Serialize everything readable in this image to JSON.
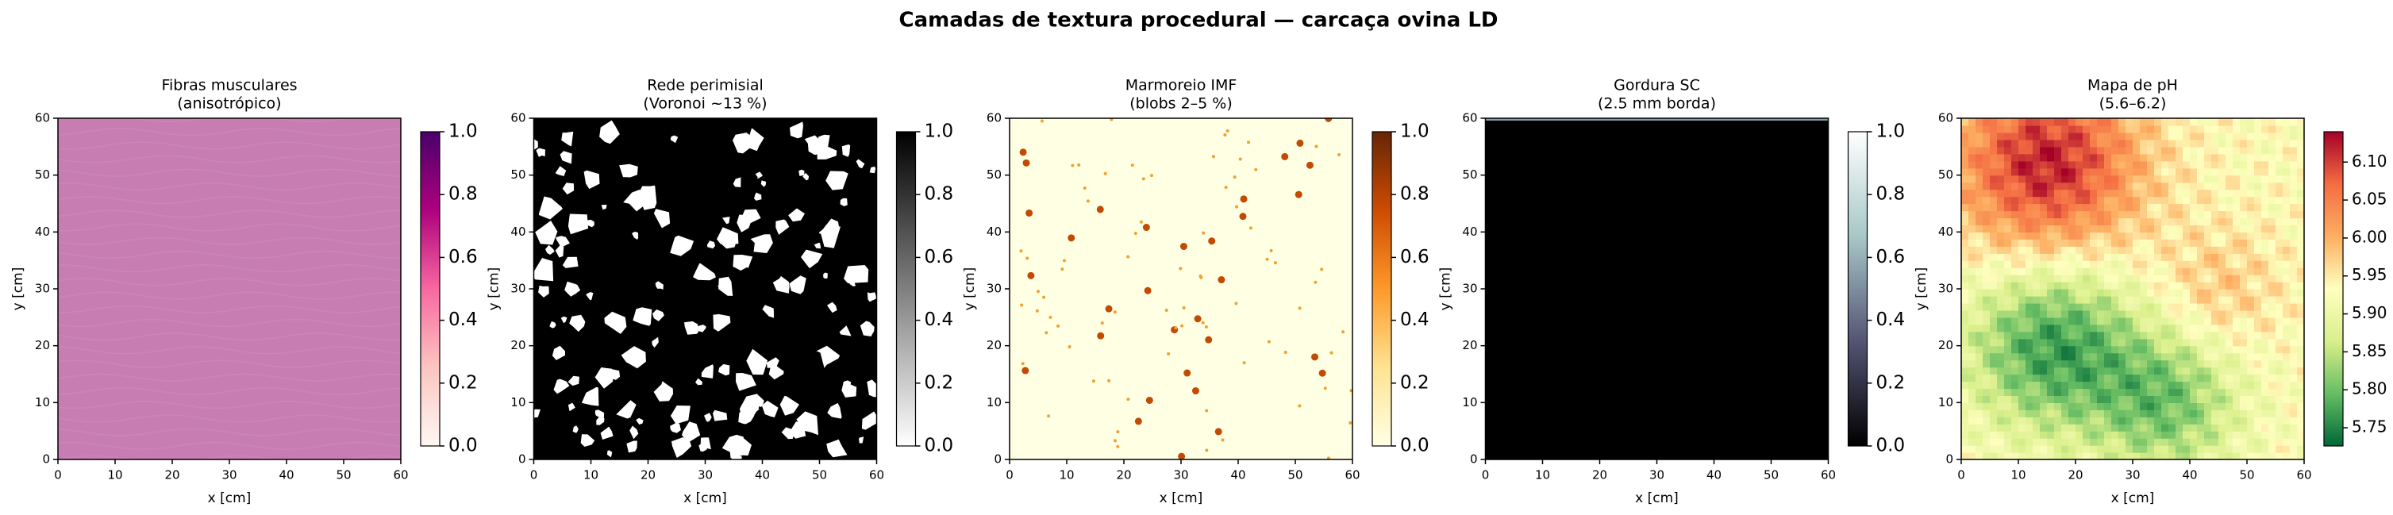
{
  "title": "Camadas de textura procedural — carcaça ovina LD",
  "chart_data": [
    {
      "type": "heatmap",
      "title": "Fibras musculares",
      "subtitle": "(anisotrópico)",
      "x_label": "x [cm]",
      "y_label": "y [cm]",
      "xlim": [
        0,
        60
      ],
      "ylim": [
        0,
        60
      ],
      "xticks": [
        0,
        10,
        20,
        30,
        40,
        50,
        60
      ],
      "yticks": [
        0,
        10,
        20,
        30,
        40,
        50,
        60
      ],
      "colorbar": {
        "lim": [
          0,
          1
        ],
        "colors": [
          "#fff7f3",
          "#fcc5c0",
          "#f768a1",
          "#ae017e",
          "#49006a"
        ],
        "ticks": [
          {
            "value": 0,
            "label": "0.0"
          },
          {
            "value": 0.2,
            "label": "0.2"
          },
          {
            "value": 0.4,
            "label": "0.4"
          },
          {
            "value": 0.6,
            "label": "0.6"
          },
          {
            "value": 0.8,
            "label": "0.8"
          },
          {
            "value": 1,
            "label": "1.0"
          }
        ]
      }
    },
    {
      "type": "heatmap",
      "title": "Rede perimisial",
      "subtitle": "(Voronoi ~13 %)",
      "x_label": "x [cm]",
      "y_label": "y [cm]",
      "xlim": [
        0,
        60
      ],
      "ylim": [
        0,
        60
      ],
      "xticks": [
        0,
        10,
        20,
        30,
        40,
        50,
        60
      ],
      "yticks": [
        0,
        10,
        20,
        30,
        40,
        50,
        60
      ],
      "colorbar": {
        "lim": [
          0,
          1
        ],
        "colors": [
          "#ffffff",
          "#000000"
        ],
        "ticks": [
          {
            "value": 0,
            "label": "0.0"
          },
          {
            "value": 0.2,
            "label": "0.2"
          },
          {
            "value": 0.4,
            "label": "0.4"
          },
          {
            "value": 0.6,
            "label": "0.6"
          },
          {
            "value": 0.8,
            "label": "0.8"
          },
          {
            "value": 1,
            "label": "1.0"
          }
        ]
      }
    },
    {
      "type": "heatmap",
      "title": "Marmoreio IMF",
      "subtitle": "(blobs 2–5 %)",
      "x_label": "x [cm]",
      "y_label": "y [cm]",
      "xlim": [
        0,
        60
      ],
      "ylim": [
        0,
        60
      ],
      "xticks": [
        0,
        10,
        20,
        30,
        40,
        50,
        60
      ],
      "yticks": [
        0,
        10,
        20,
        30,
        40,
        50,
        60
      ],
      "colorbar": {
        "lim": [
          0,
          1
        ],
        "colors": [
          "#ffffe5",
          "#fee391",
          "#fe9929",
          "#cc4c02",
          "#662506"
        ],
        "ticks": [
          {
            "value": 0,
            "label": "0.0"
          },
          {
            "value": 0.2,
            "label": "0.2"
          },
          {
            "value": 0.4,
            "label": "0.4"
          },
          {
            "value": 0.6,
            "label": "0.6"
          },
          {
            "value": 0.8,
            "label": "0.8"
          },
          {
            "value": 1,
            "label": "1.0"
          }
        ]
      }
    },
    {
      "type": "heatmap",
      "title": "Gordura SC",
      "subtitle": "(2.5 mm borda)",
      "x_label": "x [cm]",
      "y_label": "y [cm]",
      "xlim": [
        0,
        60
      ],
      "ylim": [
        0,
        60
      ],
      "xticks": [
        0,
        10,
        20,
        30,
        40,
        50,
        60
      ],
      "yticks": [
        0,
        10,
        20,
        30,
        40,
        50,
        60
      ],
      "colorbar": {
        "lim": [
          0,
          1
        ],
        "colors": [
          "#000000",
          "#545474",
          "#a7c7c7",
          "#ffffff"
        ],
        "ticks": [
          {
            "value": 0,
            "label": "0.0"
          },
          {
            "value": 0.2,
            "label": "0.2"
          },
          {
            "value": 0.4,
            "label": "0.4"
          },
          {
            "value": 0.6,
            "label": "0.6"
          },
          {
            "value": 0.8,
            "label": "0.8"
          },
          {
            "value": 1,
            "label": "1.0"
          }
        ]
      }
    },
    {
      "type": "heatmap",
      "title": "Mapa de pH",
      "subtitle": "(5.6–6.2)",
      "x_label": "x [cm]",
      "y_label": "y [cm]",
      "xlim": [
        0,
        60
      ],
      "ylim": [
        0,
        60
      ],
      "xticks": [
        0,
        10,
        20,
        30,
        40,
        50,
        60
      ],
      "yticks": [
        0,
        10,
        20,
        30,
        40,
        50,
        60
      ],
      "colorbar": {
        "lim": [
          5.726,
          6.14
        ],
        "colors": [
          "#006837",
          "#66bd63",
          "#d9ef8b",
          "#ffffbf",
          "#fdae61",
          "#f46d43",
          "#a50026"
        ],
        "ticks": [
          5.75,
          {
            "value": 5.8,
            "label": "5.80"
          },
          5.85,
          {
            "value": 5.9,
            "label": "5.90"
          },
          5.95,
          {
            "value": 6.0,
            "label": "6.00"
          },
          6.05,
          {
            "value": 6.1,
            "label": "6.10"
          }
        ]
      }
    }
  ]
}
